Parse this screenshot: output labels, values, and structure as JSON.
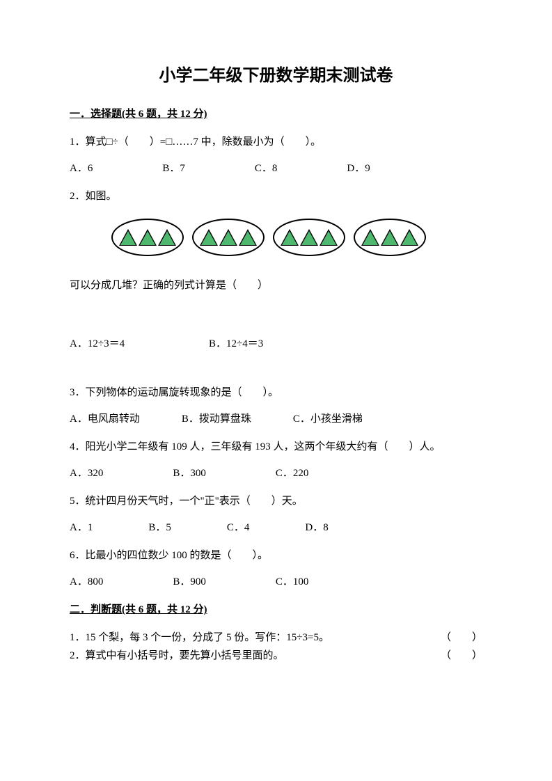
{
  "title": "小学二年级下册数学期末测试卷",
  "section1": {
    "header": "一．选择题(共 6 题，共 12 分)",
    "q1": {
      "text": "1．算式□÷（　　）=□……7 中，除数最小为（　　）。",
      "opts": {
        "a": "A．6",
        "b": "B．7",
        "c": "C．8",
        "d": "D．9"
      }
    },
    "q2": {
      "text": "2．如图。",
      "subtext": "可以分成几堆？正确的列式计算是（　　）",
      "opts": {
        "a": "A．12÷3＝4",
        "b": "B．12÷4＝3"
      },
      "oval_count": 4,
      "triangles_per_oval": 3,
      "triangle_fill": "#4eb86f",
      "triangle_border": "#000000",
      "oval_border": "#000000"
    },
    "q3": {
      "text": "3．下列物体的运动属旋转现象的是（　　）。",
      "opts": {
        "a": "A．电风扇转动",
        "b": "B．拨动算盘珠",
        "c": "C．小孩坐滑梯"
      }
    },
    "q4": {
      "text": "4．阳光小学二年级有 109 人，三年级有 193 人，这两个年级大约有（　　）人。",
      "opts": {
        "a": "A．320",
        "b": "B．300",
        "c": "C．220"
      }
    },
    "q5": {
      "text": "5．统计四月份天气时，一个\"正\"表示（　　）天。",
      "opts": {
        "a": "A．1",
        "b": "B．5",
        "c": "C．4",
        "d": "D．8"
      }
    },
    "q6": {
      "text": "6．比最小的四位数少 100 的数是（　　）。",
      "opts": {
        "a": "A．800",
        "b": "B．900",
        "c": "C．100"
      }
    }
  },
  "section2": {
    "header": "二．判断题(共 6 题，共 12 分)",
    "q1": {
      "text": "1．15 个梨，每 3 个一份，分成了 5 份。写作：15÷3=5。",
      "paren": "（　　）"
    },
    "q2": {
      "text": "2．算式中有小括号时，要先算小括号里面的。",
      "paren": "（　　）"
    }
  }
}
